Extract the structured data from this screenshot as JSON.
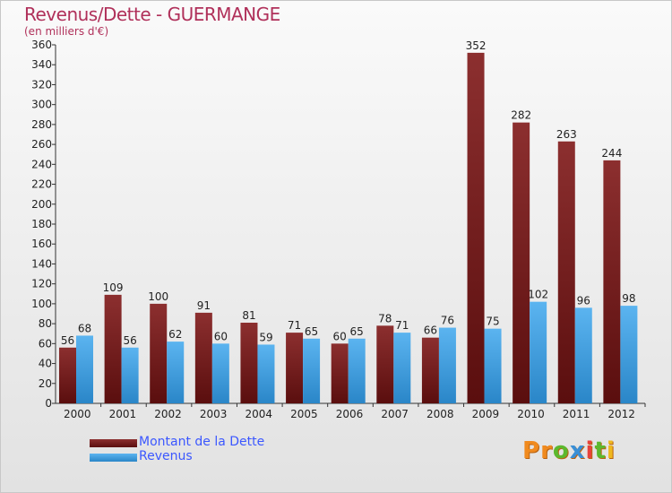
{
  "title": "Revenus/Dette - GUERMANGE",
  "subtitle": "(en milliers d'€)",
  "logo_text": "Proxiti",
  "colors": {
    "debt": "#7a1a1a",
    "revenue": "#3d9ee0",
    "title": "#b0305a",
    "legend_text": "#3b57ff"
  },
  "legend": [
    {
      "label": "Montant de la Dette",
      "color": "#7a1a1a"
    },
    {
      "label": "Revenus",
      "color": "#3d9ee0"
    }
  ],
  "chart_data": {
    "type": "bar",
    "title": "Revenus/Dette - GUERMANGE",
    "subtitle": "(en milliers d'€)",
    "xlabel": "",
    "ylabel": "",
    "ylim": [
      0,
      360
    ],
    "ytick_step": 20,
    "grid": false,
    "legend_position": "bottom-left",
    "categories": [
      "2000",
      "2001",
      "2002",
      "2003",
      "2004",
      "2005",
      "2006",
      "2007",
      "2008",
      "2009",
      "2010",
      "2011",
      "2012"
    ],
    "series": [
      {
        "name": "Montant de la Dette",
        "color": "#7a1a1a",
        "values": [
          56,
          109,
          100,
          91,
          81,
          71,
          60,
          78,
          66,
          352,
          282,
          263,
          244
        ]
      },
      {
        "name": "Revenus",
        "color": "#3d9ee0",
        "values": [
          68,
          56,
          62,
          60,
          59,
          65,
          65,
          71,
          76,
          75,
          102,
          96,
          98
        ]
      }
    ]
  }
}
